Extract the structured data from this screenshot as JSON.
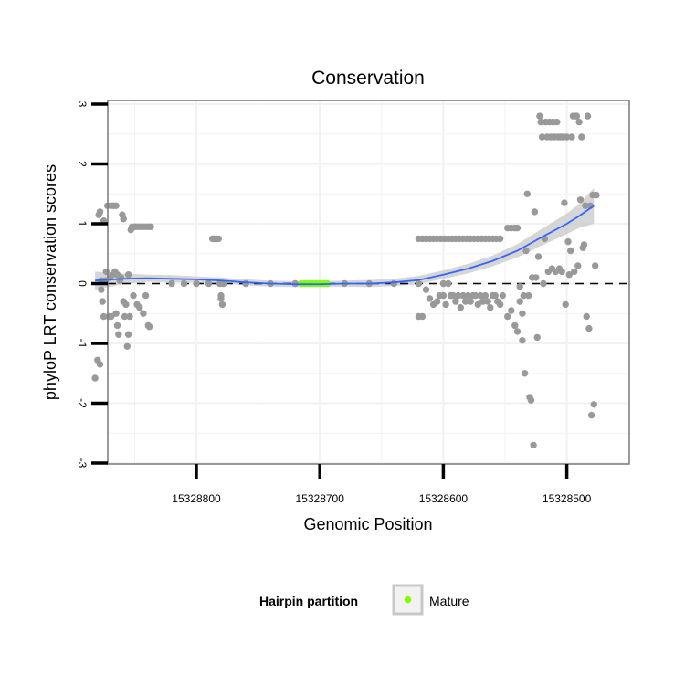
{
  "chart_data": {
    "type": "scatter",
    "title": "Conservation",
    "xlabel": "Genomic Position",
    "ylabel": "phyloP LRT conservation scores",
    "xlim": [
      15328900,
      15328450
    ],
    "ylim": [
      -3,
      3
    ],
    "x_ticks": [
      15328800,
      15328700,
      15328600,
      15328500
    ],
    "x_tick_labels": [
      "15328800",
      "15328700",
      "15328600",
      "15328500"
    ],
    "y_ticks": [
      -3,
      -2,
      -1,
      0,
      1,
      2,
      3
    ],
    "y_tick_labels": [
      "-3",
      "-2",
      "-1",
      "0",
      "1",
      "2",
      "3"
    ],
    "reference_line": {
      "y": 0,
      "style": "dashed"
    },
    "legend": {
      "title": "Hairpin partition",
      "placement": "bottom",
      "entries": [
        {
          "label": "Mature",
          "color": "#7fff00"
        }
      ]
    },
    "colors": {
      "points": "#999999",
      "smooth": "#3366ff",
      "ribbon": "#c8c8c8",
      "mature": "#7fff00",
      "grid": "#f2f2f2",
      "frame": "#808080"
    },
    "series": [
      {
        "name": "conservation",
        "points": [
          [
            15328882,
            -1.58
          ],
          [
            15328880,
            -1.28
          ],
          [
            15328879,
            1.15
          ],
          [
            15328878,
            1.2
          ],
          [
            15328878,
            -1.35
          ],
          [
            15328877,
            0.05
          ],
          [
            15328877,
            -0.1
          ],
          [
            15328876,
            -0.3
          ],
          [
            15328875,
            1.05
          ],
          [
            15328875,
            -0.55
          ],
          [
            15328874,
            0.05
          ],
          [
            15328873,
            0.2
          ],
          [
            15328872,
            1.3
          ],
          [
            15328871,
            -0.55
          ],
          [
            15328870,
            0.1
          ],
          [
            15328869,
            1.3
          ],
          [
            15328869,
            -0.55
          ],
          [
            15328868,
            0.15
          ],
          [
            15328867,
            1.3
          ],
          [
            15328866,
            0.2
          ],
          [
            15328865,
            -0.5
          ],
          [
            15328865,
            1.3
          ],
          [
            15328864,
            0.15
          ],
          [
            15328864,
            -0.7
          ],
          [
            15328863,
            -0.85
          ],
          [
            15328862,
            0.05
          ],
          [
            15328861,
            0.1
          ],
          [
            15328860,
            1.15
          ],
          [
            15328859,
            1.08
          ],
          [
            15328859,
            -0.3
          ],
          [
            15328858,
            -0.55
          ],
          [
            15328857,
            -0.35
          ],
          [
            15328856,
            -1.05
          ],
          [
            15328855,
            0.15
          ],
          [
            15328855,
            -0.85
          ],
          [
            15328854,
            -0.55
          ],
          [
            15328853,
            0.9
          ],
          [
            15328852,
            0.95
          ],
          [
            15328851,
            -0.2
          ],
          [
            15328850,
            0.95
          ],
          [
            15328849,
            0.95
          ],
          [
            15328848,
            -0.35
          ],
          [
            15328847,
            0.95
          ],
          [
            15328846,
            -0.4
          ],
          [
            15328845,
            0.95
          ],
          [
            15328844,
            0.95
          ],
          [
            15328843,
            -0.5
          ],
          [
            15328842,
            0.95
          ],
          [
            15328841,
            -0.2
          ],
          [
            15328840,
            0.95
          ],
          [
            15328839,
            -0.7
          ],
          [
            15328838,
            0.95
          ],
          [
            15328838,
            -0.72
          ],
          [
            15328837,
            0.95
          ],
          [
            15328820,
            0.0
          ],
          [
            15328810,
            0.0
          ],
          [
            15328800,
            0.0
          ],
          [
            15328790,
            0.0
          ],
          [
            15328787,
            0.75
          ],
          [
            15328786,
            0.75
          ],
          [
            15328785,
            0.75
          ],
          [
            15328784,
            0.75
          ],
          [
            15328783,
            0.75
          ],
          [
            15328782,
            0.75
          ],
          [
            15328781,
            0.0
          ],
          [
            15328780,
            -0.2
          ],
          [
            15328780,
            -0.25
          ],
          [
            15328779,
            -0.35
          ],
          [
            15328778,
            0.0
          ],
          [
            15328760,
            0.0
          ],
          [
            15328740,
            0.0
          ],
          [
            15328720,
            0.0
          ],
          [
            15328680,
            0.0
          ],
          [
            15328660,
            0.0
          ],
          [
            15328640,
            0.0
          ],
          [
            15328620,
            0.0
          ],
          [
            15328600,
            0.0
          ],
          [
            15328620,
            0.75
          ],
          [
            15328617,
            0.75
          ],
          [
            15328614,
            0.75
          ],
          [
            15328611,
            0.75
          ],
          [
            15328608,
            0.75
          ],
          [
            15328605,
            0.75
          ],
          [
            15328602,
            0.75
          ],
          [
            15328599,
            0.75
          ],
          [
            15328596,
            0.75
          ],
          [
            15328593,
            0.75
          ],
          [
            15328590,
            0.75
          ],
          [
            15328587,
            0.75
          ],
          [
            15328584,
            0.75
          ],
          [
            15328581,
            0.75
          ],
          [
            15328578,
            0.75
          ],
          [
            15328575,
            0.75
          ],
          [
            15328572,
            0.75
          ],
          [
            15328569,
            0.75
          ],
          [
            15328566,
            0.75
          ],
          [
            15328563,
            0.75
          ],
          [
            15328560,
            0.75
          ],
          [
            15328557,
            0.75
          ],
          [
            15328554,
            0.75
          ],
          [
            15328620,
            -0.55
          ],
          [
            15328617,
            -0.55
          ],
          [
            15328614,
            -0.1
          ],
          [
            15328611,
            -0.25
          ],
          [
            15328608,
            -0.35
          ],
          [
            15328605,
            -0.3
          ],
          [
            15328603,
            -0.2
          ],
          [
            15328600,
            -0.2
          ],
          [
            15328598,
            -0.35
          ],
          [
            15328596,
            0.0
          ],
          [
            15328594,
            -0.2
          ],
          [
            15328592,
            -0.2
          ],
          [
            15328590,
            -0.3
          ],
          [
            15328588,
            -0.2
          ],
          [
            15328586,
            -0.4
          ],
          [
            15328584,
            -0.2
          ],
          [
            15328582,
            -0.3
          ],
          [
            15328580,
            -0.2
          ],
          [
            15328578,
            -0.3
          ],
          [
            15328576,
            -0.2
          ],
          [
            15328574,
            -0.2
          ],
          [
            15328572,
            -0.35
          ],
          [
            15328570,
            -0.2
          ],
          [
            15328568,
            -0.3
          ],
          [
            15328566,
            -0.2
          ],
          [
            15328564,
            -0.3
          ],
          [
            15328562,
            -0.4
          ],
          [
            15328560,
            -0.2
          ],
          [
            15328558,
            -0.2
          ],
          [
            15328556,
            -0.3
          ],
          [
            15328554,
            -0.35
          ],
          [
            15328552,
            -0.2
          ],
          [
            15328548,
            -0.55
          ],
          [
            15328545,
            -0.45
          ],
          [
            15328542,
            -0.7
          ],
          [
            15328540,
            -0.8
          ],
          [
            15328538,
            -0.3
          ],
          [
            15328536,
            -0.5
          ],
          [
            15328535,
            -0.2
          ],
          [
            15328548,
            0.93
          ],
          [
            15328545,
            0.93
          ],
          [
            15328542,
            0.93
          ],
          [
            15328540,
            0.93
          ],
          [
            15328538,
            -0.05
          ],
          [
            15328536,
            -0.95
          ],
          [
            15328534,
            -1.5
          ],
          [
            15328533,
            0.55
          ],
          [
            15328532,
            1.5
          ],
          [
            15328531,
            -0.2
          ],
          [
            15328530,
            -1.9
          ],
          [
            15328529,
            -1.95
          ],
          [
            15328528,
            0.1
          ],
          [
            15328527,
            -2.7
          ],
          [
            15328526,
            1.2
          ],
          [
            15328525,
            0.1
          ],
          [
            15328524,
            -0.9
          ],
          [
            15328523,
            0.45
          ],
          [
            15328522,
            2.8
          ],
          [
            15328521,
            2.7
          ],
          [
            15328520,
            2.45
          ],
          [
            15328519,
            0.0
          ],
          [
            15328518,
            0.75
          ],
          [
            15328517,
            2.7
          ],
          [
            15328516,
            2.45
          ],
          [
            15328515,
            0.2
          ],
          [
            15328514,
            2.7
          ],
          [
            15328513,
            2.45
          ],
          [
            15328512,
            0.25
          ],
          [
            15328511,
            2.7
          ],
          [
            15328510,
            2.45
          ],
          [
            15328509,
            0.2
          ],
          [
            15328508,
            2.7
          ],
          [
            15328507,
            2.45
          ],
          [
            15328506,
            0.25
          ],
          [
            15328505,
            2.45
          ],
          [
            15328504,
            0.2
          ],
          [
            15328503,
            2.45
          ],
          [
            15328502,
            1.35
          ],
          [
            15328501,
            -0.35
          ],
          [
            15328500,
            2.45
          ],
          [
            15328499,
            0.7
          ],
          [
            15328498,
            0.15
          ],
          [
            15328497,
            0.55
          ],
          [
            15328496,
            2.45
          ],
          [
            15328495,
            2.8
          ],
          [
            15328494,
            0.2
          ],
          [
            15328493,
            2.8
          ],
          [
            15328492,
            2.8
          ],
          [
            15328491,
            0.3
          ],
          [
            15328490,
            2.7
          ],
          [
            15328489,
            1.4
          ],
          [
            15328488,
            2.45
          ],
          [
            15328487,
            0.6
          ],
          [
            15328486,
            0.65
          ],
          [
            15328485,
            1.3
          ],
          [
            15328484,
            -0.55
          ],
          [
            15328483,
            2.8
          ],
          [
            15328482,
            -0.75
          ],
          [
            15328481,
            1.3
          ],
          [
            15328480,
            -2.2
          ],
          [
            15328479,
            1.48
          ],
          [
            15328478,
            -2.02
          ],
          [
            15328477,
            0.3
          ],
          [
            15328476,
            1.48
          ]
        ]
      },
      {
        "name": "Mature",
        "points": [
          [
            15328715,
            0.0
          ],
          [
            15328712,
            0.0
          ],
          [
            15328709,
            0.0
          ],
          [
            15328706,
            0.0
          ],
          [
            15328703,
            0.0
          ],
          [
            15328700,
            0.0
          ],
          [
            15328697,
            0.0
          ],
          [
            15328694,
            0.0
          ]
        ]
      }
    ],
    "smooth": {
      "x": [
        15328882,
        15328860,
        15328840,
        15328820,
        15328800,
        15328780,
        15328760,
        15328740,
        15328720,
        15328700,
        15328680,
        15328660,
        15328640,
        15328620,
        15328600,
        15328580,
        15328560,
        15328540,
        15328520,
        15328500,
        15328490,
        15328478
      ],
      "y": [
        0.05,
        0.08,
        0.09,
        0.08,
        0.07,
        0.05,
        0.02,
        0.0,
        -0.01,
        -0.01,
        0.0,
        0.0,
        0.02,
        0.06,
        0.15,
        0.25,
        0.38,
        0.55,
        0.78,
        1.0,
        1.13,
        1.3
      ],
      "upper": [
        0.2,
        0.17,
        0.15,
        0.14,
        0.12,
        0.1,
        0.07,
        0.05,
        0.04,
        0.04,
        0.05,
        0.06,
        0.08,
        0.13,
        0.22,
        0.33,
        0.47,
        0.66,
        0.92,
        1.17,
        1.33,
        1.6
      ],
      "lower": [
        -0.1,
        -0.01,
        0.03,
        0.02,
        0.02,
        0.0,
        -0.03,
        -0.05,
        -0.06,
        -0.06,
        -0.05,
        -0.06,
        -0.04,
        -0.01,
        0.08,
        0.17,
        0.29,
        0.44,
        0.64,
        0.83,
        0.93,
        1.0
      ]
    }
  }
}
